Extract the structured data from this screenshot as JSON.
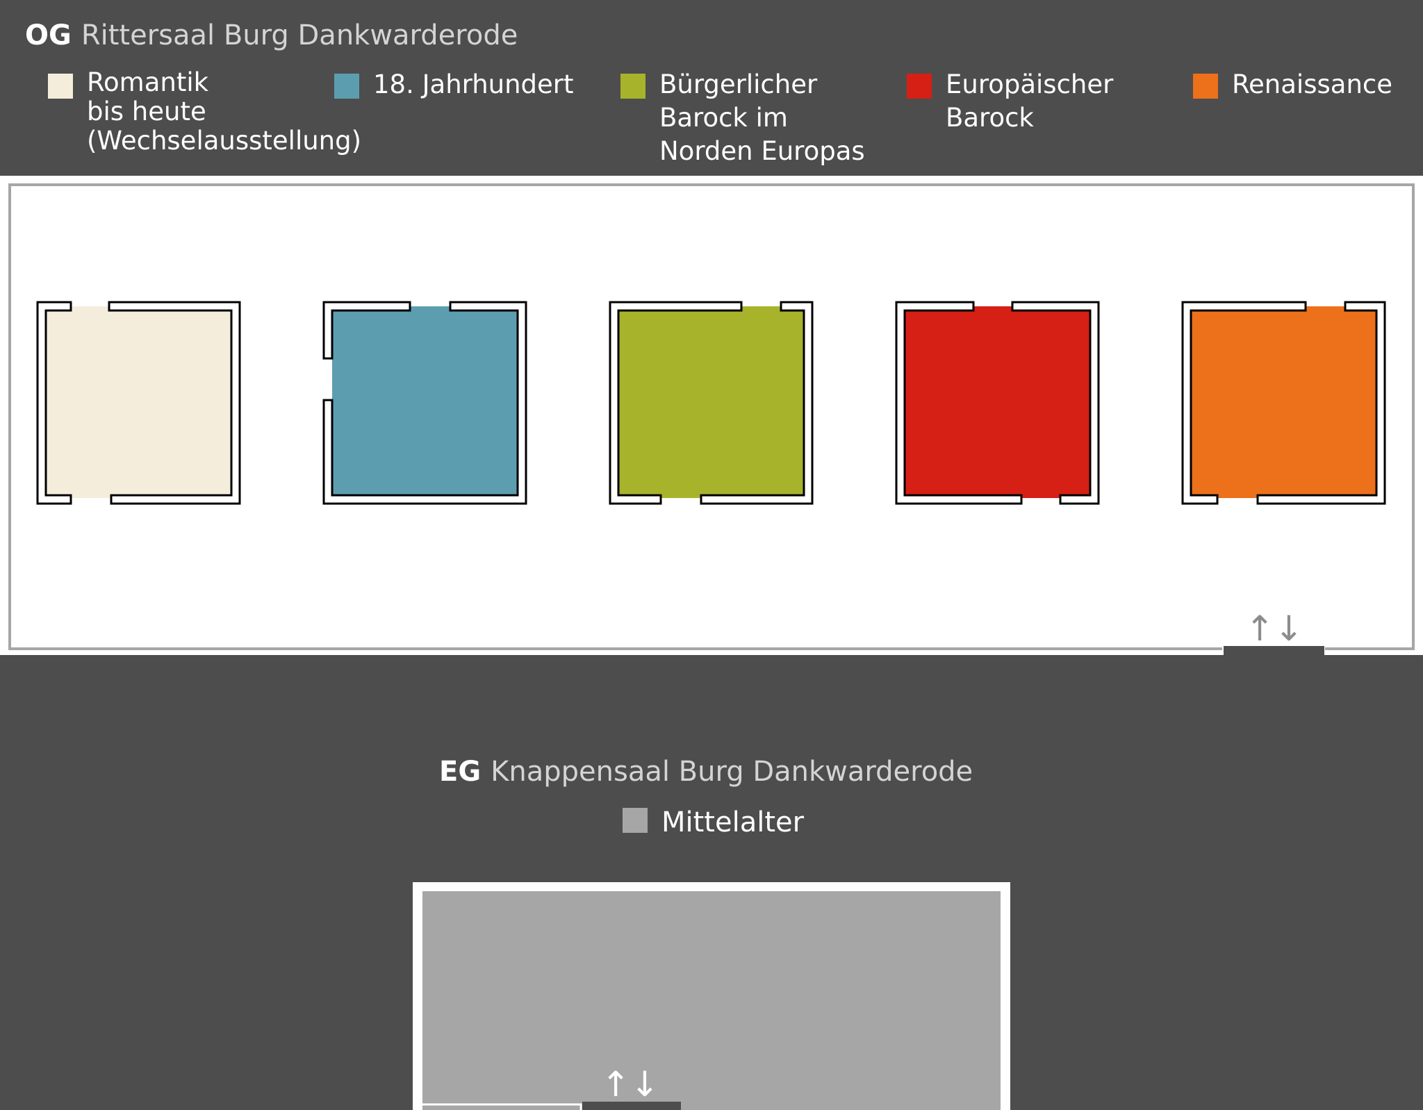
{
  "og": {
    "prefix": "OG",
    "title": "Rittersaal Burg Dankwarderode",
    "legend": [
      {
        "label": "Romantik\nbis heute\n(Wechselausstellung)",
        "color": "#f5eddc"
      },
      {
        "label": "18. Jahrhundert",
        "color": "#5c9eb0"
      },
      {
        "label": "Bürgerlicher\nBarock im\nNorden Europas",
        "color": "#a7b32b"
      },
      {
        "label": "Europäischer\nBarock",
        "color": "#d61f15"
      },
      {
        "label": "Renaissance",
        "color": "#ed701b"
      }
    ],
    "stairs": "↑↓"
  },
  "eg": {
    "prefix": "EG",
    "title": "Knappensaal Burg Dankwarderode",
    "legend": [
      {
        "label": "Mittelalter",
        "color": "#a6a6a6"
      }
    ],
    "stairs": "↑↓"
  },
  "colors": {
    "background": "#4d4d4d",
    "wall_grey": "#a6a6a6",
    "title_grey": "#d4d4d4"
  }
}
